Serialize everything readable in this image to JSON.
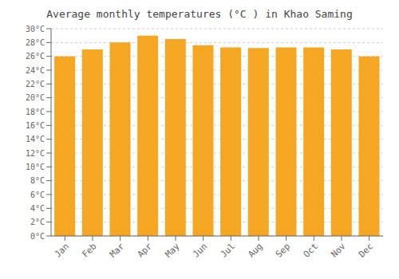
{
  "chart_data": {
    "type": "bar",
    "title": "Average monthly temperatures (°C ) in Khao Saming",
    "categories": [
      "Jan",
      "Feb",
      "Mar",
      "Apr",
      "May",
      "Jun",
      "Jul",
      "Aug",
      "Sep",
      "Oct",
      "Nov",
      "Dec"
    ],
    "values": [
      26.0,
      27.0,
      28.0,
      29.0,
      28.5,
      27.6,
      27.3,
      27.2,
      27.3,
      27.3,
      27.0,
      26.0
    ],
    "color": "#F5A623",
    "ylim": [
      0,
      30
    ],
    "yticks": [
      {
        "value": 0,
        "label": "0°C"
      },
      {
        "value": 2,
        "label": "2°C"
      },
      {
        "value": 4,
        "label": "4°C"
      },
      {
        "value": 6,
        "label": "6°C"
      },
      {
        "value": 8,
        "label": "8°C"
      },
      {
        "value": 10,
        "label": "10°C"
      },
      {
        "value": 12,
        "label": "12°C"
      },
      {
        "value": 14,
        "label": "14°C"
      },
      {
        "value": 16,
        "label": "16°C"
      },
      {
        "value": 18,
        "label": "18°C"
      },
      {
        "value": 20,
        "label": "20°C"
      },
      {
        "value": 22,
        "label": "22°C"
      },
      {
        "value": 24,
        "label": "24°C"
      },
      {
        "value": 26,
        "label": "26°C"
      },
      {
        "value": 28,
        "label": "28°C"
      },
      {
        "value": 30,
        "label": "30°C"
      }
    ],
    "grid": true
  }
}
